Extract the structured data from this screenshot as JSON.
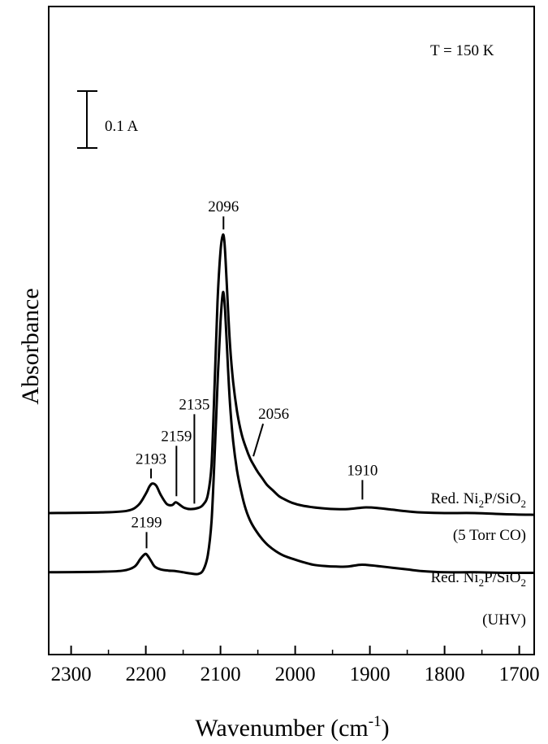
{
  "chart_data": {
    "type": "line",
    "xlabel": "Wavenumber (cm",
    "xlabel_sup": "-1",
    "xlabel_close": ")",
    "ylabel": "Absorbance",
    "xlim": [
      2330,
      1680
    ],
    "x_reversed": true,
    "xticks": [
      2300,
      2200,
      2100,
      2000,
      1900,
      1800,
      1700
    ],
    "xtick_labels": [
      "2300",
      "2200",
      "2100",
      "2000",
      "1900",
      "1800",
      "1700"
    ],
    "y_ticks_shown": false,
    "temperature_label": "T = 150 K",
    "scale_bar": {
      "label": "0.1 A",
      "value": 0.1
    },
    "series": [
      {
        "label_main": "Red. Ni",
        "label_sub1": "2",
        "label_mid": "P/SiO",
        "label_sub2": "2",
        "condition": "(5 Torr CO)",
        "baseline": 0,
        "x": [
          2330,
          2260,
          2225,
          2210,
          2200,
          2195,
          2191,
          2186,
          2180,
          2172,
          2165,
          2160,
          2155,
          2148,
          2140,
          2130,
          2123,
          2117,
          2112,
          2108,
          2104,
          2100,
          2097,
          2095,
          2093,
          2090,
          2087,
          2083,
          2078,
          2072,
          2066,
          2060,
          2055,
          2050,
          2044,
          2038,
          2030,
          2022,
          2014,
          2004,
          1990,
          1975,
          1960,
          1945,
          1930,
          1915,
          1905,
          1890,
          1870,
          1850,
          1830,
          1800,
          1760,
          1720,
          1680
        ],
        "values": [
          0,
          0.001,
          0.004,
          0.014,
          0.034,
          0.047,
          0.052,
          0.048,
          0.032,
          0.016,
          0.014,
          0.019,
          0.015,
          0.009,
          0.007,
          0.009,
          0.015,
          0.032,
          0.085,
          0.22,
          0.37,
          0.46,
          0.488,
          0.48,
          0.44,
          0.36,
          0.29,
          0.23,
          0.18,
          0.14,
          0.115,
          0.095,
          0.083,
          0.072,
          0.061,
          0.05,
          0.04,
          0.03,
          0.024,
          0.018,
          0.013,
          0.01,
          0.008,
          0.007,
          0.007,
          0.009,
          0.01,
          0.009,
          0.006,
          0.003,
          0.001,
          0,
          0,
          -0.002,
          -0.003
        ]
      },
      {
        "label_main": "Red. Ni",
        "label_sub1": "2",
        "label_mid": "P/SiO",
        "label_sub2": "2",
        "condition": "(UHV)",
        "baseline": -0.104,
        "x": [
          2330,
          2260,
          2230,
          2215,
          2207,
          2201,
          2198,
          2193,
          2188,
          2180,
          2170,
          2160,
          2150,
          2140,
          2130,
          2123,
          2117,
          2112,
          2108,
          2104,
          2100,
          2097,
          2095,
          2093,
          2090,
          2087,
          2083,
          2078,
          2072,
          2066,
          2060,
          2052,
          2044,
          2036,
          2026,
          2015,
          2002,
          1990,
          1975,
          1960,
          1945,
          1930,
          1915,
          1905,
          1890,
          1870,
          1850,
          1830,
          1800,
          1760,
          1720,
          1680
        ],
        "values": [
          0,
          0.001,
          0.003,
          0.01,
          0.024,
          0.032,
          0.03,
          0.02,
          0.01,
          0.005,
          0.003,
          0.002,
          0,
          -0.002,
          -0.003,
          0.004,
          0.03,
          0.09,
          0.2,
          0.33,
          0.44,
          0.49,
          0.48,
          0.44,
          0.36,
          0.29,
          0.23,
          0.18,
          0.14,
          0.11,
          0.09,
          0.072,
          0.058,
          0.047,
          0.037,
          0.029,
          0.023,
          0.018,
          0.013,
          0.011,
          0.01,
          0.01,
          0.013,
          0.013,
          0.011,
          0.008,
          0.005,
          0.002,
          0,
          0,
          -0.001,
          -0.001
        ]
      }
    ],
    "annotations": [
      {
        "text": "2096",
        "x": 2096
      },
      {
        "text": "2193",
        "x": 2193
      },
      {
        "text": "2159",
        "x": 2159
      },
      {
        "text": "2135",
        "x": 2135
      },
      {
        "text": "2056",
        "x": 2056
      },
      {
        "text": "1910",
        "x": 1910
      },
      {
        "text": "2199",
        "x": 2199
      }
    ]
  }
}
